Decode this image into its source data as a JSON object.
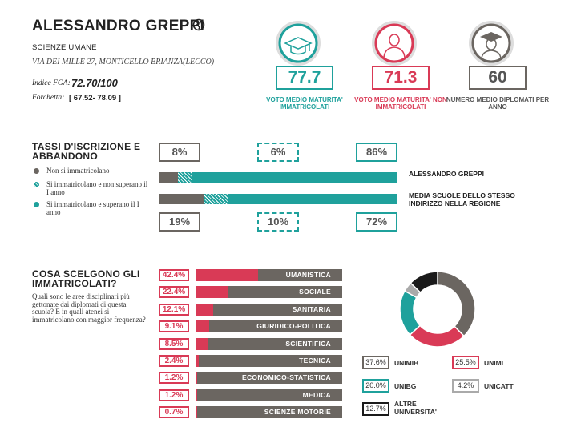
{
  "school": {
    "name": "ALESSANDRO GREPPI",
    "type": "SCIENZE UMANE",
    "address": "VIA DEI MILLE 27, MONTICELLO BRIANZA(LECCO)",
    "fga_label": "Indice FGA:",
    "fga_value": "72.70/100",
    "range_label": "Forchetta:",
    "range_value": "[ 67.52- 78.09 ]"
  },
  "kpis": [
    {
      "value": "77.7",
      "label": "VOTO MEDIO MATURITA' IMMATRICOLATI",
      "color": "#1fa19c",
      "icon": "graduation-cap-icon"
    },
    {
      "value": "71.3",
      "label": "VOTO MEDIO MATURITA' NON IMMATRICOLATI",
      "color": "#d93a56",
      "icon": "person-icon"
    },
    {
      "value": "60",
      "label": "NUMERO MEDIO DIPLOMATI PER ANNO",
      "color": "#6b6661",
      "icon": "graduate-person-icon"
    }
  ],
  "tassi": {
    "title": "TASSI D'ISCRIZIONE E ABBANDONO",
    "legend": [
      {
        "label": "Non si immatricolano",
        "color": "#6b6661"
      },
      {
        "label": "Si immatricolano e non superano il I anno",
        "color": "#1fa19c"
      },
      {
        "label": "Si immatricolano e superano il I anno",
        "color": "#1fa19c"
      }
    ],
    "school_row": {
      "label": "ALESSANDRO GREPPI",
      "not_enrolled": 8,
      "dropout": 6,
      "pass": 86,
      "not_enrolled_text": "8%",
      "dropout_text": "6%",
      "pass_text": "86%"
    },
    "region_row": {
      "label": "MEDIA SCUOLE DELLO STESSO INDIRIZZO NELLA REGIONE",
      "not_enrolled": 19,
      "dropout": 10,
      "pass": 72,
      "not_enrolled_text": "19%",
      "dropout_text": "10%",
      "pass_text": "72%"
    }
  },
  "choices": {
    "title": "COSA SCELGONO GLI IMMATRICOLATI?",
    "question": "Quali sono le aree disciplinari più gettonate dai diplomati di questa scuola? E in quali atenei si immatricolano con maggior frequenza?",
    "areas": [
      {
        "name": "UMANISTICA",
        "pct": 42.4,
        "text": "42.4%"
      },
      {
        "name": "SOCIALE",
        "pct": 22.4,
        "text": "22.4%"
      },
      {
        "name": "SANITARIA",
        "pct": 12.1,
        "text": "12.1%"
      },
      {
        "name": "GIURIDICO-POLITICA",
        "pct": 9.1,
        "text": "9.1%"
      },
      {
        "name": "SCIENTIFICA",
        "pct": 8.5,
        "text": "8.5%"
      },
      {
        "name": "TECNICA",
        "pct": 2.4,
        "text": "2.4%"
      },
      {
        "name": "ECONOMICO-STATISTICA",
        "pct": 1.2,
        "text": "1.2%"
      },
      {
        "name": "MEDICA",
        "pct": 1.2,
        "text": "1.2%"
      },
      {
        "name": "SCIENZE MOTORIE",
        "pct": 0.7,
        "text": "0.7%"
      }
    ],
    "universities": [
      {
        "name": "UNIMIB",
        "pct": 37.6,
        "text": "37.6%",
        "color": "#6b6661"
      },
      {
        "name": "UNIMI",
        "pct": 25.5,
        "text": "25.5%",
        "color": "#d93a56"
      },
      {
        "name": "UNIBG",
        "pct": 20.0,
        "text": "20.0%",
        "color": "#1fa19c"
      },
      {
        "name": "UNICATT",
        "pct": 4.2,
        "text": "4.2%",
        "color": "#aaaaaa"
      },
      {
        "name": "ALTRE UNIVERSITA'",
        "pct": 12.7,
        "text": "12.7%",
        "color": "#1a1a1a"
      }
    ]
  }
}
